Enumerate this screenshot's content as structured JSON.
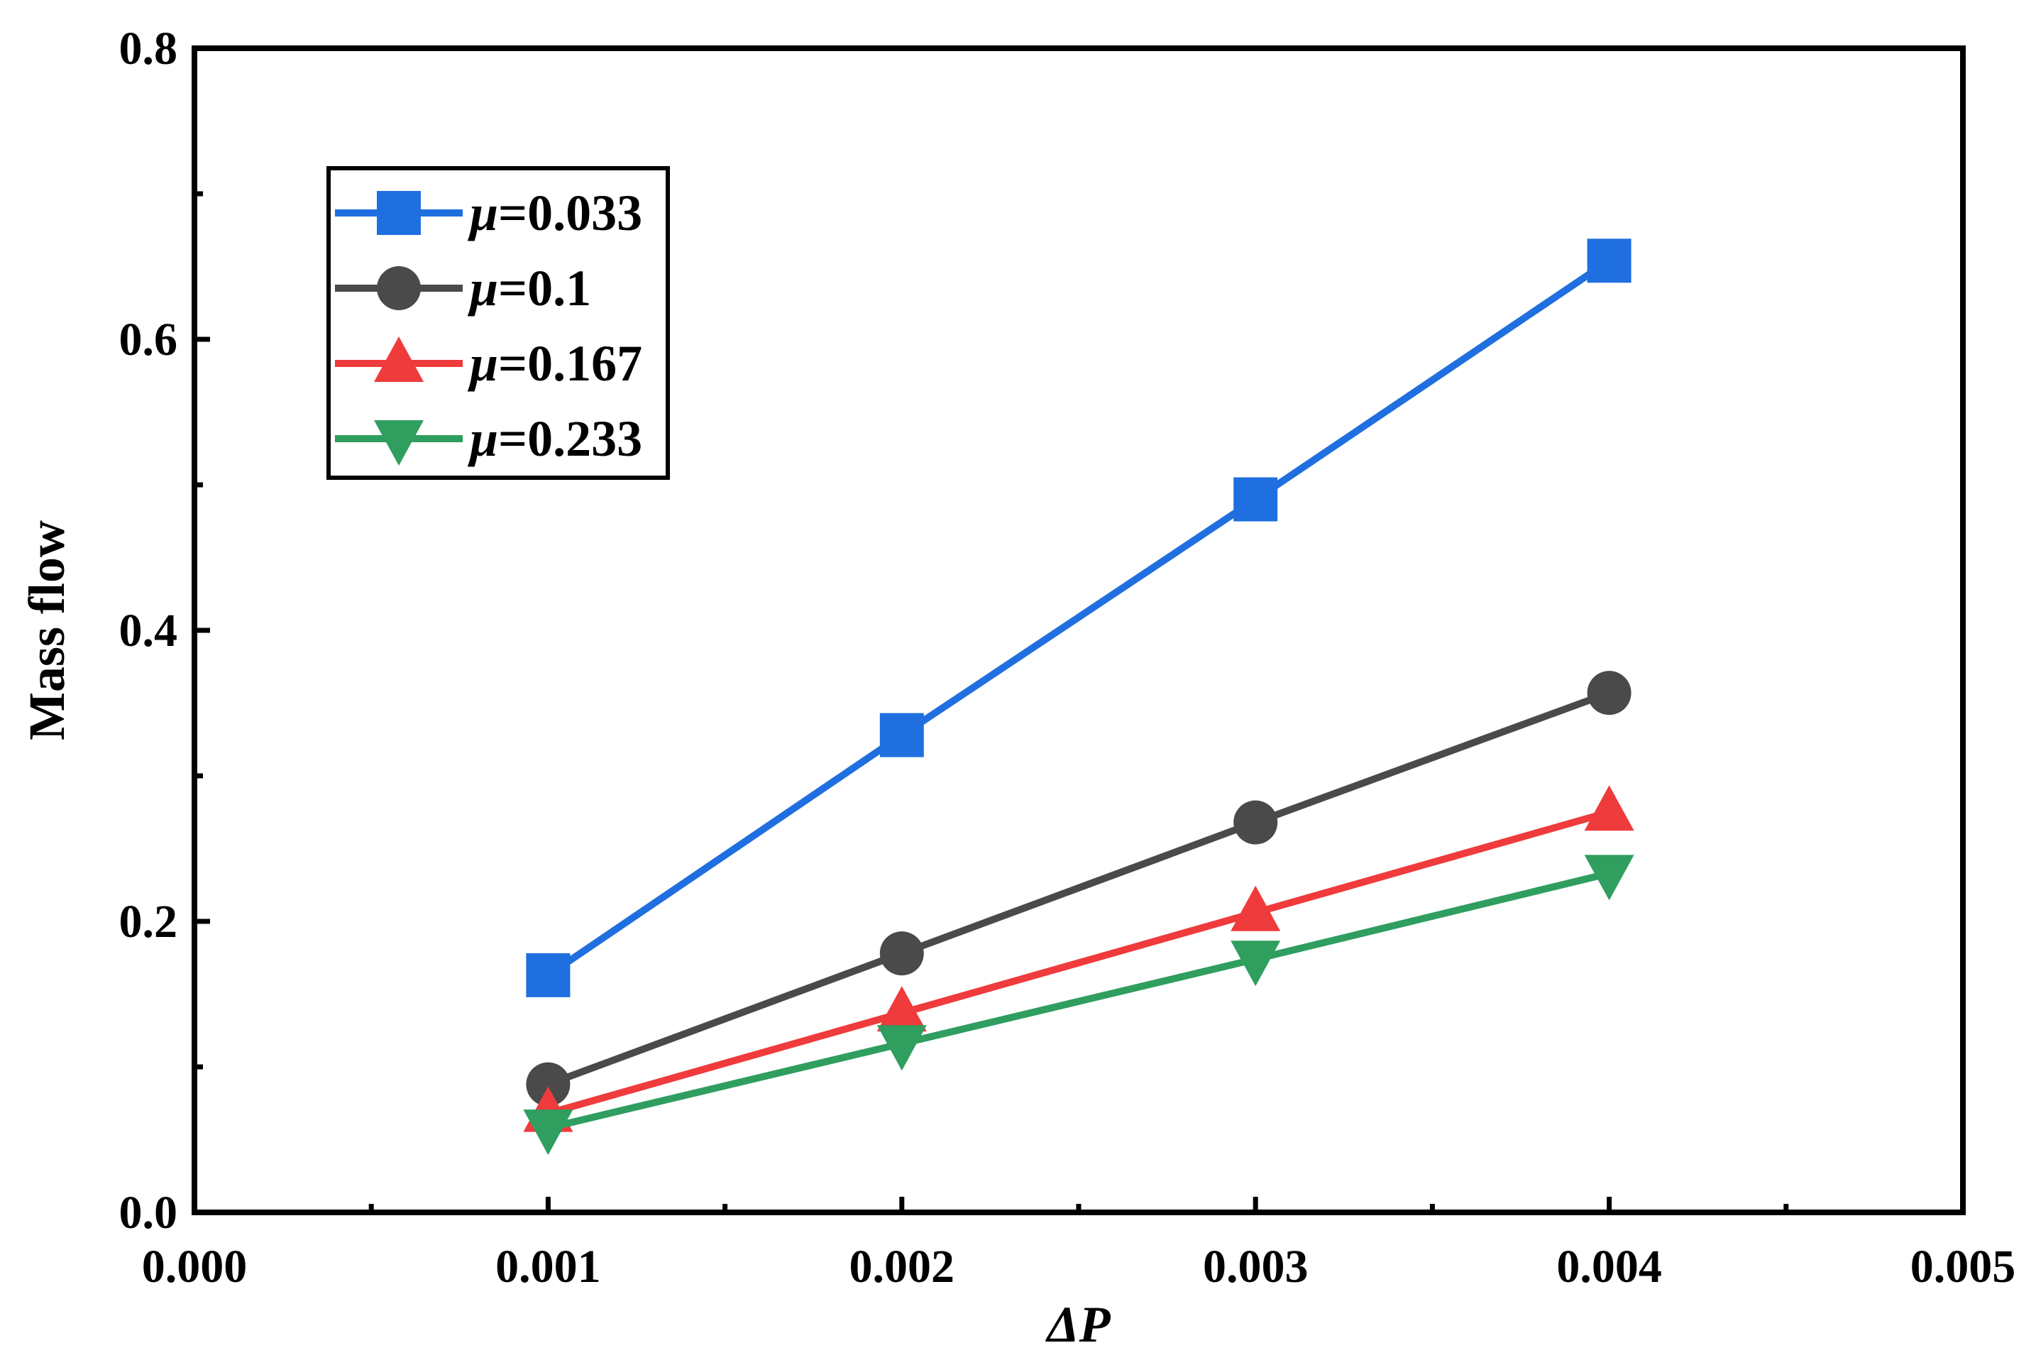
{
  "chart_data": {
    "type": "line",
    "title": "",
    "xlabel": "ΔP",
    "ylabel": "Mass flow",
    "xlim": [
      0.0,
      0.005
    ],
    "ylim": [
      0.0,
      0.8
    ],
    "x_ticks": [
      0.0,
      0.001,
      0.002,
      0.003,
      0.004,
      0.005
    ],
    "x_tick_labels": [
      "0.000",
      "0.001",
      "0.002",
      "0.003",
      "0.004",
      "0.005"
    ],
    "y_ticks": [
      0.0,
      0.2,
      0.4,
      0.6,
      0.8
    ],
    "y_tick_labels": [
      "0.0",
      "0.2",
      "0.4",
      "0.6",
      "0.8"
    ],
    "grid": false,
    "legend_position": "top-left",
    "x": [
      0.001,
      0.002,
      0.003,
      0.004
    ],
    "series": [
      {
        "name": "μ=0.033",
        "mu_symbol": "μ",
        "mu_value": "=0.033",
        "marker": "square",
        "color": "#1f6fe0",
        "values": [
          0.163,
          0.328,
          0.49,
          0.654
        ]
      },
      {
        "name": "μ=0.1",
        "mu_symbol": "μ",
        "mu_value": "=0.1",
        "marker": "circle",
        "color": "#4a4a4a",
        "values": [
          0.088,
          0.178,
          0.268,
          0.357
        ]
      },
      {
        "name": "μ=0.167",
        "mu_symbol": "μ",
        "mu_value": "=0.167",
        "marker": "triangle-up",
        "color": "#ef3b3b",
        "values": [
          0.068,
          0.137,
          0.206,
          0.275
        ]
      },
      {
        "name": "μ=0.233",
        "mu_symbol": "μ",
        "mu_value": "=0.233",
        "marker": "triangle-down",
        "color": "#2f9e5f",
        "values": [
          0.058,
          0.116,
          0.174,
          0.233
        ]
      }
    ]
  }
}
